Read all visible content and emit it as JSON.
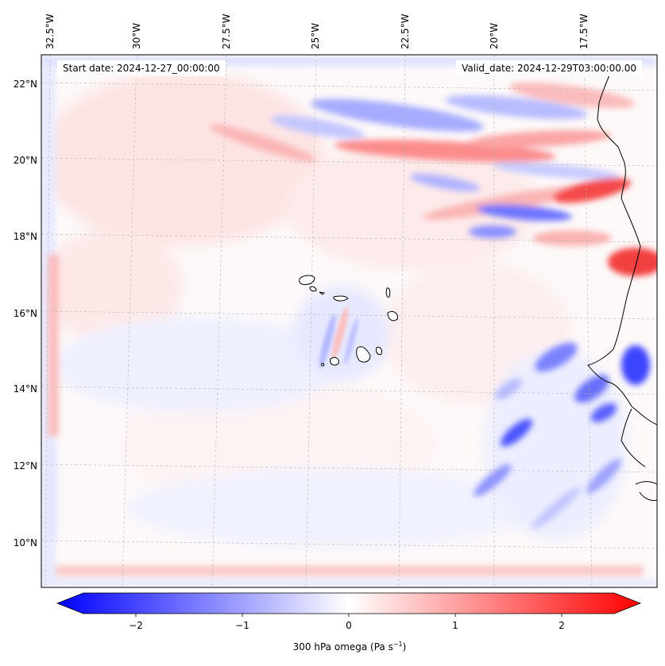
{
  "map": {
    "region": "Cape Verde and West African coast",
    "field": "300 hPa omega",
    "start_date_label": "Start date: 2024-12-27_00:00:00",
    "valid_date_label": "Valid_date: 2024-12-29T03:00:00.00",
    "lon_labels": [
      "32.5°W",
      "30°W",
      "27.5°W",
      "25°W",
      "22.5°W",
      "20°W",
      "17.5°W"
    ],
    "lat_labels": [
      "22°N",
      "20°N",
      "18°N",
      "16°N",
      "14°N",
      "12°N",
      "10°N"
    ],
    "gridlines": true,
    "colormap": "bwr",
    "colors": {
      "negative": "#0000ff",
      "zero": "#ffffff",
      "positive": "#ff0000",
      "coast": "#000000"
    }
  },
  "colorbar": {
    "label": "300 hPa omega (Pa s",
    "label_exponent": "−1",
    "label_close": ")",
    "ticks": [
      "−2",
      "−1",
      "0",
      "1",
      "2"
    ],
    "range": [
      -2.7,
      2.7
    ],
    "extend": "both"
  }
}
